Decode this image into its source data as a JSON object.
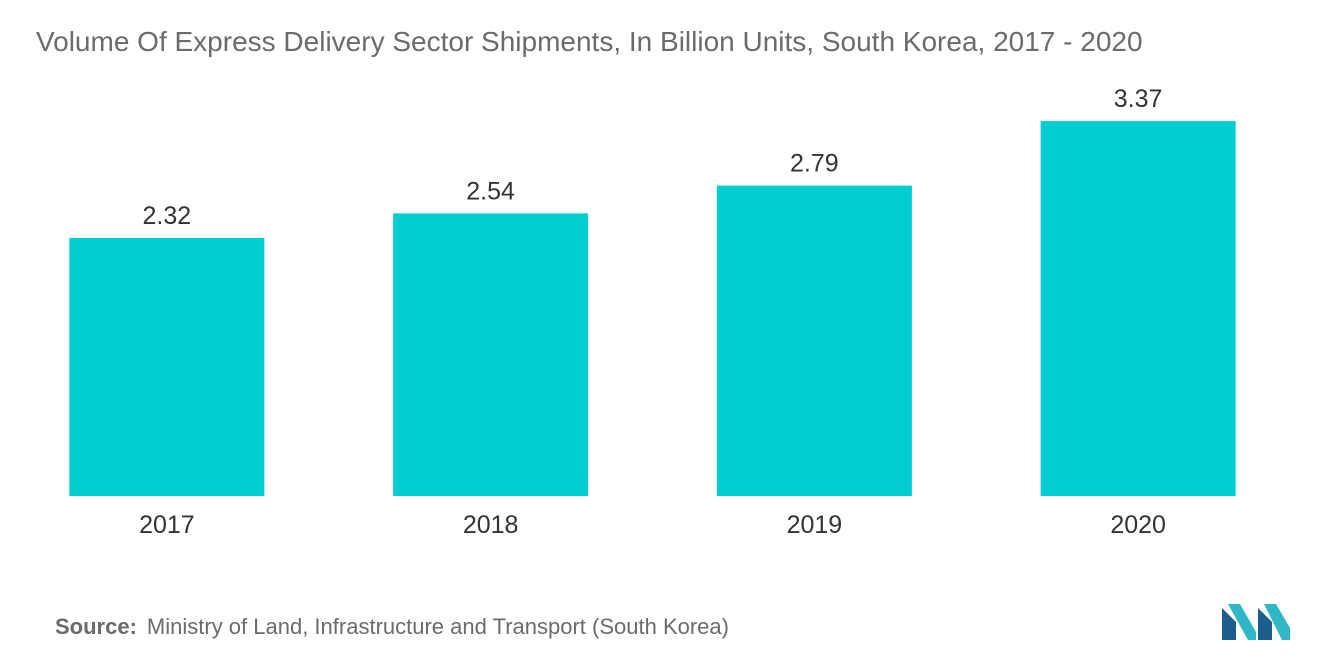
{
  "chart_data": {
    "type": "bar",
    "title": "Volume Of Express Delivery Sector Shipments, In Billion Units, South Korea, 2017 - 2020",
    "categories": [
      "2017",
      "2018",
      "2019",
      "2020"
    ],
    "values": [
      2.32,
      2.54,
      2.79,
      3.37
    ],
    "value_labels": [
      "2.32",
      "2.54",
      "2.79",
      "3.37"
    ],
    "xlabel": "",
    "ylabel": "",
    "ylim": [
      0,
      4
    ],
    "grid": false,
    "legend": "none",
    "bar_color": "#00cdd1"
  },
  "source": {
    "label": "Source:",
    "text": "Ministry of Land, Infrastructure and Transport (South Korea)"
  },
  "colors": {
    "bar": "#00cdd1",
    "text": "#6b6b6b",
    "value_text": "#333333",
    "logo_dark": "#1b5e8c",
    "logo_light": "#2fb7c7"
  }
}
